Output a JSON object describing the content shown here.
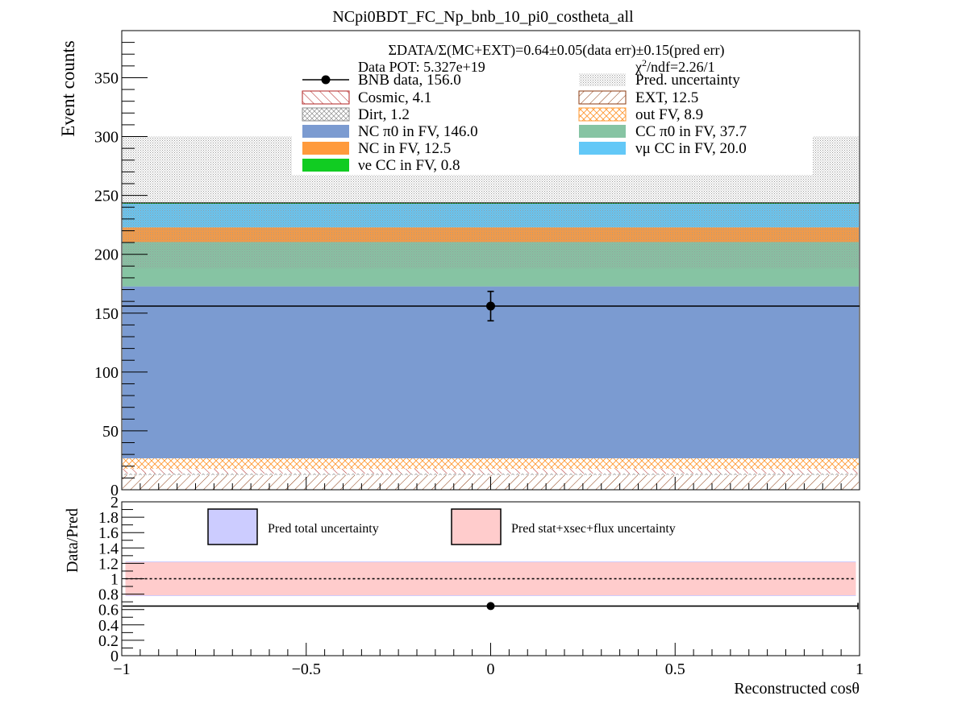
{
  "chart_data": {
    "type": "bar",
    "title": "NCpi0BDT_FC_Np_bnb_10_pi0_costheta_all",
    "xlabel": "Reconstructed cosθ",
    "xlim": [
      -1,
      1
    ],
    "main": {
      "ylabel": "Event counts",
      "ylim": [
        0,
        390
      ],
      "y_ticks": [
        0,
        50,
        100,
        150,
        200,
        250,
        300,
        350
      ],
      "stack": [
        {
          "name": "EXT",
          "value": 12.5,
          "color": "#8b3a0f",
          "style": "hatch"
        },
        {
          "name": "Dirt",
          "value": 1.2,
          "color": "#8c8c8c",
          "style": "crosshatch"
        },
        {
          "name": "Cosmic",
          "value": 4.1,
          "color": "#b22222",
          "style": "hatch"
        },
        {
          "name": "out FV",
          "value": 8.9,
          "color": "#ff9933",
          "style": "crosshatch"
        },
        {
          "name": "NC π0 in FV",
          "value": 146.0,
          "color": "#7b9bd1",
          "style": "solid"
        },
        {
          "name": "CC π0 in FV",
          "value": 37.7,
          "color": "#86c4a3",
          "style": "solid"
        },
        {
          "name": "NC in FV",
          "value": 12.5,
          "color": "#ff9a3c",
          "style": "solid"
        },
        {
          "name": "νμ CC in FV",
          "value": 20.0,
          "color": "#63c8f7",
          "style": "solid"
        },
        {
          "name": "νe CC in FV",
          "value": 0.8,
          "color": "#11cc22",
          "style": "solid"
        }
      ],
      "pred_uncertainty_range": [
        188,
        300
      ],
      "data_point": {
        "x": 0,
        "y": 156.0,
        "yerr_low": 12.5,
        "yerr_high": 12.5,
        "x_range": [
          -1,
          1
        ]
      }
    },
    "ratio": {
      "ylabel": "Data/Pred",
      "ylim": [
        0,
        2
      ],
      "y_ticks": [
        "0",
        "0.2",
        "0.4",
        "0.6",
        "0.8",
        "1",
        "1.2",
        "1.4",
        "1.6",
        "1.8",
        "2"
      ],
      "y_tick_values": [
        0,
        0.2,
        0.4,
        0.6,
        0.8,
        1,
        1.2,
        1.4,
        1.6,
        1.8,
        2
      ],
      "x_ticks": [
        "−1",
        "−0.5",
        "0",
        "0.5",
        "1"
      ],
      "x_tick_values": [
        -1,
        -0.5,
        0,
        0.5,
        1
      ],
      "total_band": [
        0.775,
        1.225
      ],
      "stat_band": [
        0.785,
        1.215
      ],
      "point": {
        "x": 0,
        "y": 0.645
      },
      "reference": 1
    },
    "legend": {
      "summary": "ΣDATA/Σ(MC+EXT)=0.64±0.05(data err)±0.15(pred err)",
      "pot": "Data POT: 5.327e+19",
      "chi2": "χ²/ndf=2.26/1",
      "entries": [
        {
          "label": "BNB data, 156.0",
          "kind": "data"
        },
        {
          "label": "Pred. uncertainty",
          "kind": "dots"
        },
        {
          "label": "Cosmic, 4.1",
          "kind": "hatch",
          "color": "#b22222"
        },
        {
          "label": "EXT, 12.5",
          "kind": "hatch",
          "color": "#8b3a0f"
        },
        {
          "label": "Dirt, 1.2",
          "kind": "cross",
          "color": "#8c8c8c"
        },
        {
          "label": "out FV, 8.9",
          "kind": "cross",
          "color": "#ff9933"
        },
        {
          "label": "NC π0 in FV,  146.0",
          "kind": "solid",
          "color": "#7b9bd1"
        },
        {
          "label": "CC π0 in FV, 37.7",
          "kind": "solid",
          "color": "#86c4a3"
        },
        {
          "label": "NC in FV, 12.5",
          "kind": "solid",
          "color": "#ff9a3c"
        },
        {
          "label": "νμ CC in FV, 20.0",
          "kind": "solid",
          "color": "#63c8f7"
        },
        {
          "label": "νe CC in FV, 0.8",
          "kind": "solid",
          "color": "#11cc22"
        }
      ],
      "ratio_entries": [
        {
          "label": "Pred total uncertainty",
          "color": "#ccccff"
        },
        {
          "label": "Pred stat+xsec+flux uncertainty",
          "color": "#ffcccc"
        }
      ]
    }
  }
}
